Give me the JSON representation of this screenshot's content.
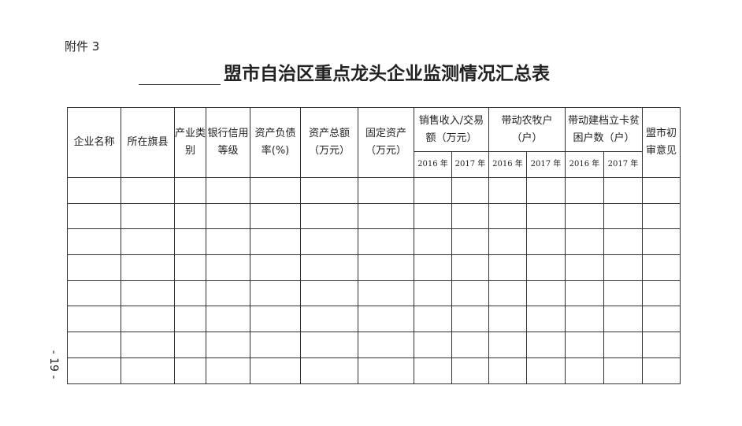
{
  "attachment_label": "附件 3",
  "title_suffix": "盟市自治区重点龙头企业监测情况汇总表",
  "page_number": "- 19 -",
  "table": {
    "headers": {
      "company_name": "企业名称",
      "county": "所在旗县",
      "industry": "产业类别",
      "credit": "银行信用等级",
      "debt_ratio": "资产负债率(%)",
      "total_assets": "资产总额（万元）",
      "fixed_assets": "固定资产（万元）",
      "sales": "销售收入/交易额（万元）",
      "farmers": "带动农牧户（户）",
      "poor": "带动建档立卡贫困户数（户）",
      "review": "盟市初审意见"
    },
    "years": [
      "2016 年",
      "2017 年"
    ],
    "row_count": 8
  }
}
